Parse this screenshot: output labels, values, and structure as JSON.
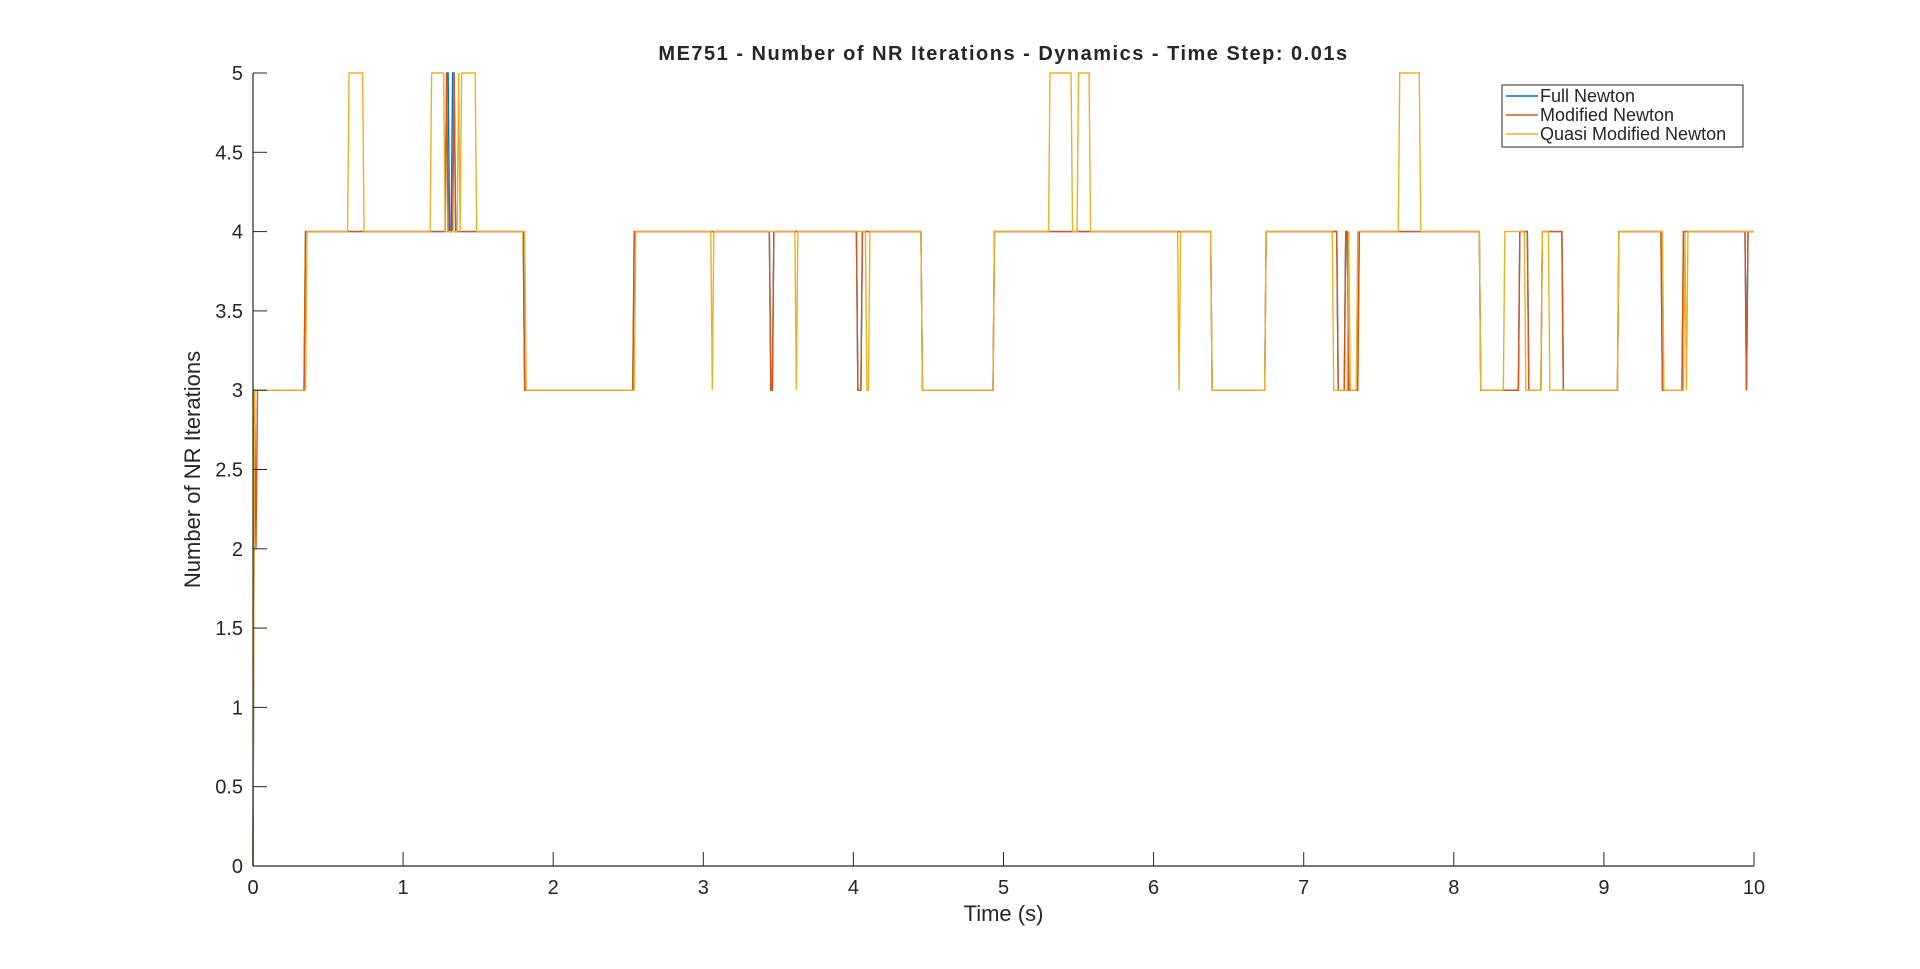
{
  "chart_data": {
    "type": "line",
    "title": "ME751 - Number of NR Iterations - Dynamics - Time Step: 0.01s",
    "xlabel": "Time (s)",
    "ylabel": "Number of NR Iterations",
    "xlim": [
      0,
      10
    ],
    "ylim": [
      0,
      5
    ],
    "xticks": [
      0,
      1,
      2,
      3,
      4,
      5,
      6,
      7,
      8,
      9,
      10
    ],
    "xtick_labels": [
      "0",
      "1",
      "2",
      "3",
      "4",
      "5",
      "6",
      "7",
      "8",
      "9",
      "10"
    ],
    "yticks": [
      0,
      0.5,
      1,
      1.5,
      2,
      2.5,
      3,
      3.5,
      4,
      4.5,
      5
    ],
    "ytick_labels": [
      "0",
      "0.5",
      "1",
      "1.5",
      "2",
      "2.5",
      "3",
      "3.5",
      "4",
      "4.5",
      "5"
    ],
    "grid": false,
    "legend_position": "top-right",
    "series": [
      {
        "name": "Full Newton",
        "color": "#0072BD",
        "points": [
          [
            0,
            0
          ],
          [
            0.01,
            3
          ],
          [
            0.34,
            3
          ],
          [
            0.35,
            4
          ],
          [
            1.28,
            4
          ],
          [
            1.29,
            5
          ],
          [
            1.3,
            5
          ],
          [
            1.31,
            4
          ],
          [
            1.32,
            4
          ],
          [
            1.33,
            5
          ],
          [
            1.34,
            5
          ],
          [
            1.35,
            4
          ],
          [
            1.8,
            4
          ],
          [
            1.81,
            3
          ],
          [
            2.53,
            3
          ],
          [
            2.54,
            4
          ],
          [
            3.44,
            4
          ],
          [
            3.45,
            3
          ],
          [
            3.46,
            3
          ],
          [
            3.47,
            4
          ],
          [
            4.02,
            4
          ],
          [
            4.03,
            3
          ],
          [
            4.05,
            3
          ],
          [
            4.06,
            4
          ],
          [
            4.45,
            4
          ],
          [
            4.46,
            3
          ],
          [
            4.93,
            3
          ],
          [
            4.94,
            4
          ],
          [
            6.38,
            4
          ],
          [
            6.39,
            3
          ],
          [
            6.74,
            3
          ],
          [
            6.75,
            4
          ],
          [
            7.22,
            4
          ],
          [
            7.23,
            3
          ],
          [
            7.27,
            3
          ],
          [
            7.28,
            4
          ],
          [
            7.29,
            4
          ],
          [
            7.3,
            3
          ],
          [
            7.36,
            3
          ],
          [
            7.37,
            4
          ],
          [
            8.17,
            4
          ],
          [
            8.18,
            3
          ],
          [
            8.43,
            3
          ],
          [
            8.44,
            4
          ],
          [
            8.49,
            4
          ],
          [
            8.5,
            3
          ],
          [
            8.58,
            3
          ],
          [
            8.59,
            4
          ],
          [
            8.72,
            4
          ],
          [
            8.73,
            3
          ],
          [
            9.09,
            3
          ],
          [
            9.1,
            4
          ],
          [
            9.38,
            4
          ],
          [
            9.39,
            3
          ],
          [
            9.52,
            3
          ],
          [
            9.53,
            4
          ],
          [
            9.94,
            4
          ],
          [
            9.95,
            3
          ],
          [
            9.96,
            4
          ],
          [
            10,
            4
          ]
        ]
      },
      {
        "name": "Modified Newton",
        "color": "#D95319",
        "points": [
          [
            0,
            0
          ],
          [
            0.01,
            3
          ],
          [
            0.02,
            2
          ],
          [
            0.03,
            3
          ],
          [
            0.34,
            3
          ],
          [
            0.35,
            4
          ],
          [
            1.28,
            4
          ],
          [
            1.29,
            5
          ],
          [
            1.3,
            4
          ],
          [
            1.33,
            4
          ],
          [
            1.34,
            5
          ],
          [
            1.35,
            4
          ],
          [
            1.8,
            4
          ],
          [
            1.81,
            3
          ],
          [
            2.53,
            3
          ],
          [
            2.54,
            4
          ],
          [
            3.44,
            4
          ],
          [
            3.45,
            3
          ],
          [
            3.46,
            3
          ],
          [
            3.47,
            4
          ],
          [
            4.02,
            4
          ],
          [
            4.03,
            3
          ],
          [
            4.05,
            3
          ],
          [
            4.06,
            4
          ],
          [
            4.45,
            4
          ],
          [
            4.46,
            3
          ],
          [
            4.93,
            3
          ],
          [
            4.94,
            4
          ],
          [
            6.38,
            4
          ],
          [
            6.39,
            3
          ],
          [
            6.74,
            3
          ],
          [
            6.75,
            4
          ],
          [
            7.22,
            4
          ],
          [
            7.23,
            3
          ],
          [
            7.27,
            3
          ],
          [
            7.28,
            4
          ],
          [
            7.29,
            4
          ],
          [
            7.3,
            3
          ],
          [
            7.36,
            3
          ],
          [
            7.37,
            4
          ],
          [
            8.17,
            4
          ],
          [
            8.18,
            3
          ],
          [
            8.43,
            3
          ],
          [
            8.44,
            4
          ],
          [
            8.49,
            4
          ],
          [
            8.5,
            3
          ],
          [
            8.58,
            3
          ],
          [
            8.59,
            4
          ],
          [
            8.72,
            4
          ],
          [
            8.73,
            3
          ],
          [
            9.09,
            3
          ],
          [
            9.1,
            4
          ],
          [
            9.38,
            4
          ],
          [
            9.39,
            3
          ],
          [
            9.52,
            3
          ],
          [
            9.53,
            4
          ],
          [
            9.94,
            4
          ],
          [
            9.95,
            3
          ],
          [
            9.96,
            4
          ],
          [
            10,
            4
          ]
        ]
      },
      {
        "name": "Quasi Modified Newton",
        "color": "#EDB120",
        "points": [
          [
            0,
            0
          ],
          [
            0.01,
            3
          ],
          [
            0.35,
            3
          ],
          [
            0.36,
            4
          ],
          [
            0.63,
            4
          ],
          [
            0.64,
            5
          ],
          [
            0.73,
            5
          ],
          [
            0.74,
            4
          ],
          [
            1.18,
            4
          ],
          [
            1.19,
            5
          ],
          [
            1.27,
            5
          ],
          [
            1.28,
            4
          ],
          [
            1.36,
            4
          ],
          [
            1.37,
            5
          ],
          [
            1.38,
            4
          ],
          [
            1.39,
            5
          ],
          [
            1.48,
            5
          ],
          [
            1.49,
            4
          ],
          [
            1.81,
            4
          ],
          [
            1.82,
            3
          ],
          [
            2.54,
            3
          ],
          [
            2.55,
            4
          ],
          [
            3.05,
            4
          ],
          [
            3.06,
            3
          ],
          [
            3.07,
            4
          ],
          [
            3.61,
            4
          ],
          [
            3.62,
            3
          ],
          [
            3.63,
            4
          ],
          [
            4.08,
            4
          ],
          [
            4.09,
            3
          ],
          [
            4.1,
            3
          ],
          [
            4.11,
            4
          ],
          [
            4.45,
            4
          ],
          [
            4.46,
            3
          ],
          [
            4.93,
            3
          ],
          [
            4.94,
            4
          ],
          [
            5.3,
            4
          ],
          [
            5.31,
            5
          ],
          [
            5.45,
            5
          ],
          [
            5.46,
            4
          ],
          [
            5.49,
            4
          ],
          [
            5.5,
            5
          ],
          [
            5.57,
            5
          ],
          [
            5.58,
            4
          ],
          [
            6.16,
            4
          ],
          [
            6.17,
            3
          ],
          [
            6.18,
            4
          ],
          [
            6.38,
            4
          ],
          [
            6.39,
            3
          ],
          [
            6.74,
            3
          ],
          [
            6.75,
            4
          ],
          [
            7.19,
            4
          ],
          [
            7.2,
            3
          ],
          [
            7.29,
            3
          ],
          [
            7.3,
            4
          ],
          [
            7.31,
            3
          ],
          [
            7.35,
            3
          ],
          [
            7.36,
            4
          ],
          [
            7.63,
            4
          ],
          [
            7.64,
            5
          ],
          [
            7.77,
            5
          ],
          [
            7.78,
            4
          ],
          [
            8.17,
            4
          ],
          [
            8.18,
            3
          ],
          [
            8.33,
            3
          ],
          [
            8.34,
            4
          ],
          [
            8.47,
            4
          ],
          [
            8.48,
            3
          ],
          [
            8.58,
            3
          ],
          [
            8.59,
            4
          ],
          [
            8.63,
            4
          ],
          [
            8.64,
            3
          ],
          [
            9.09,
            3
          ],
          [
            9.1,
            4
          ],
          [
            9.39,
            4
          ],
          [
            9.4,
            3
          ],
          [
            9.53,
            3
          ],
          [
            9.54,
            4
          ],
          [
            9.55,
            3
          ],
          [
            9.56,
            4
          ],
          [
            10,
            4
          ]
        ]
      }
    ]
  }
}
